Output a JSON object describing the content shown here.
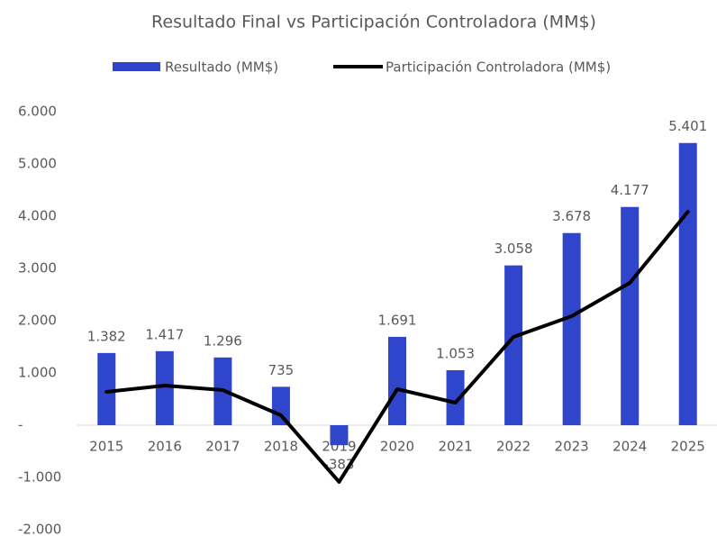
{
  "chart_data": {
    "type": "bar+line",
    "title": "Resultado Final vs Participación Controladora (MM$)",
    "categories": [
      "2015",
      "2016",
      "2017",
      "2018",
      "2019",
      "2020",
      "2021",
      "2022",
      "2023",
      "2024",
      "2025"
    ],
    "series": [
      {
        "name": "Resultado (MM$)",
        "type": "bar",
        "color": "#2f45cc",
        "values": [
          1382,
          1417,
          1296,
          735,
          -383,
          1691,
          1053,
          3058,
          3678,
          4177,
          5401
        ],
        "value_labels": [
          "1.382",
          "1.417",
          "1.296",
          "735",
          "-383",
          "1.691",
          "1.053",
          "3.058",
          "3.678",
          "4.177",
          "5.401"
        ]
      },
      {
        "name": "Participación Controladora (MM$)",
        "type": "line",
        "color": "#000000",
        "values": [
          638,
          759,
          672,
          190,
          -1086,
          690,
          431,
          1690,
          2086,
          2724,
          4086
        ]
      }
    ],
    "ylim": [
      -2000,
      6000
    ],
    "yticks": [
      {
        "value": -2000,
        "label": "-2.000"
      },
      {
        "value": -1000,
        "label": "-1.000"
      },
      {
        "value": 0,
        "label": "-"
      },
      {
        "value": 1000,
        "label": "1.000"
      },
      {
        "value": 2000,
        "label": "2.000"
      },
      {
        "value": 3000,
        "label": "3.000"
      },
      {
        "value": 4000,
        "label": "4.000"
      },
      {
        "value": 5000,
        "label": "5.000"
      },
      {
        "value": 6000,
        "label": "6.000"
      }
    ],
    "legend": "top",
    "grid": false
  }
}
